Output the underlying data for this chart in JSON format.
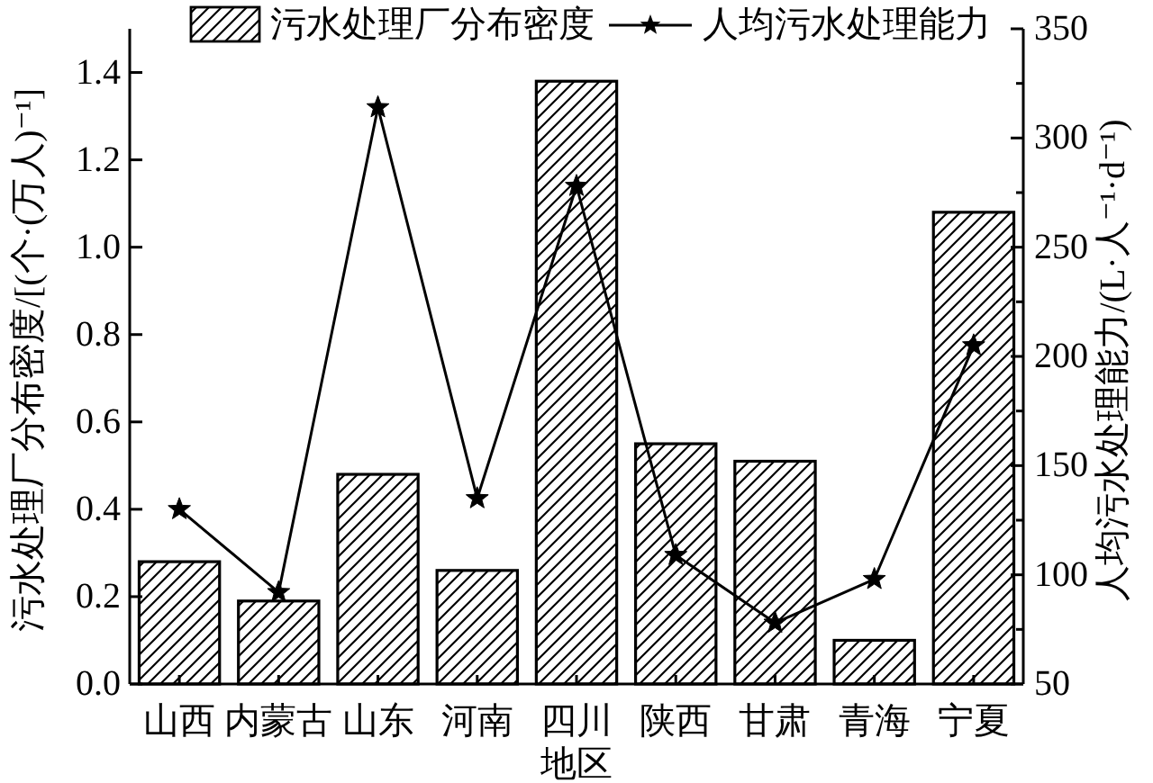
{
  "chart_data": {
    "type": "bar",
    "categories": [
      "山西",
      "内蒙古",
      "山东",
      "河南",
      "四川",
      "陕西",
      "甘肃",
      "青海",
      "宁夏"
    ],
    "xlabel": "地区",
    "ylabel": "污水处理厂分布密度/[(个·(万人)⁻¹]",
    "y2label": "人均污水处理能力/(L·人⁻¹·d⁻¹)",
    "series": [
      {
        "name": "污水处理厂分布密度",
        "color": "#000000",
        "values": [
          0.28,
          0.19,
          0.48,
          0.26,
          1.38,
          0.55,
          0.51,
          0.1,
          1.08
        ]
      },
      {
        "name": "人均污水处理能力",
        "type": "line",
        "axis": "y2",
        "color": "#000000",
        "marker": "star",
        "values": [
          130,
          92,
          314,
          135,
          278,
          109,
          78,
          98,
          205
        ]
      }
    ],
    "ylim": [
      0,
      1.5
    ],
    "yticks": [
      {
        "value": 0,
        "label": "0.0"
      },
      {
        "value": 0.2,
        "label": "0.2"
      },
      {
        "value": 0.4,
        "label": "0.4"
      },
      {
        "value": 0.6,
        "label": "0.6"
      },
      {
        "value": 0.8,
        "label": "0.8"
      },
      {
        "value": 1,
        "label": "1.0"
      },
      {
        "value": 1.2,
        "label": "1.2"
      },
      {
        "value": 1.4,
        "label": "1.4"
      }
    ],
    "y2lim": [
      50,
      350
    ],
    "y2ticks": [
      50,
      {
        "value": 75,
        "label": null
      },
      100,
      {
        "value": 125,
        "label": null
      },
      150,
      {
        "value": 175,
        "label": null
      },
      200,
      {
        "value": 225,
        "label": null
      },
      250,
      {
        "value": 275,
        "label": null
      },
      300,
      {
        "value": 325,
        "label": null
      },
      350
    ],
    "legend": "top"
  }
}
